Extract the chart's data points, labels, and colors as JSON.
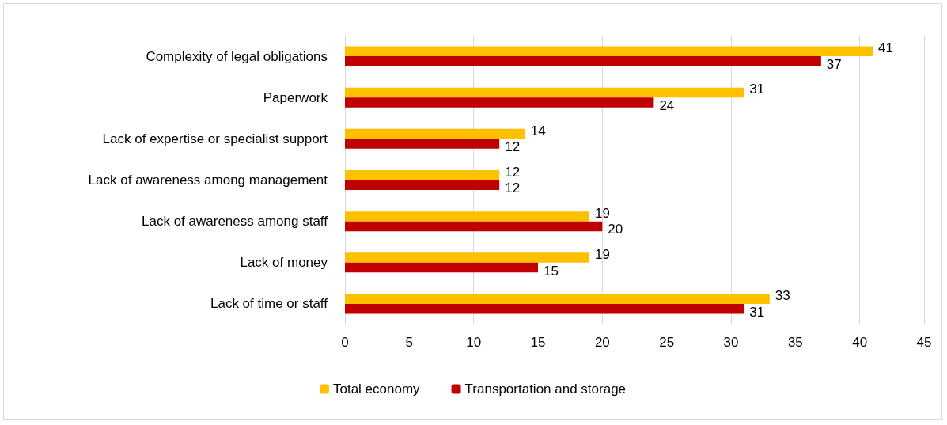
{
  "chart_data": {
    "type": "bar",
    "orientation": "horizontal",
    "categories": [
      "Complexity of legal obligations",
      "Paperwork",
      "Lack of expertise or specialist support",
      "Lack of awareness among management",
      "Lack of awareness among staff",
      "Lack of money",
      "Lack of time or staff"
    ],
    "series": [
      {
        "name": "Total economy",
        "color": "#ffc000",
        "values": [
          41,
          31,
          14,
          12,
          19,
          19,
          33
        ]
      },
      {
        "name": "Transportation and storage",
        "color": "#c00000",
        "values": [
          37,
          24,
          12,
          12,
          20,
          15,
          31
        ]
      }
    ],
    "xlim": [
      0,
      45
    ],
    "xticks": [
      0,
      5,
      10,
      15,
      20,
      25,
      30,
      35,
      40,
      45
    ],
    "grid": "x",
    "legend": "bottom",
    "data_labels": true
  }
}
